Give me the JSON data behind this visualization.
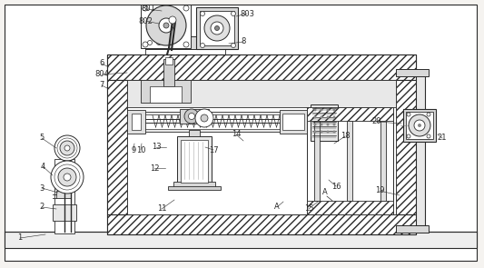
{
  "bg_color": "#f5f3f0",
  "lc": "#2a2a2a",
  "fig_w": 5.33,
  "fig_h": 2.95,
  "dpi": 100
}
